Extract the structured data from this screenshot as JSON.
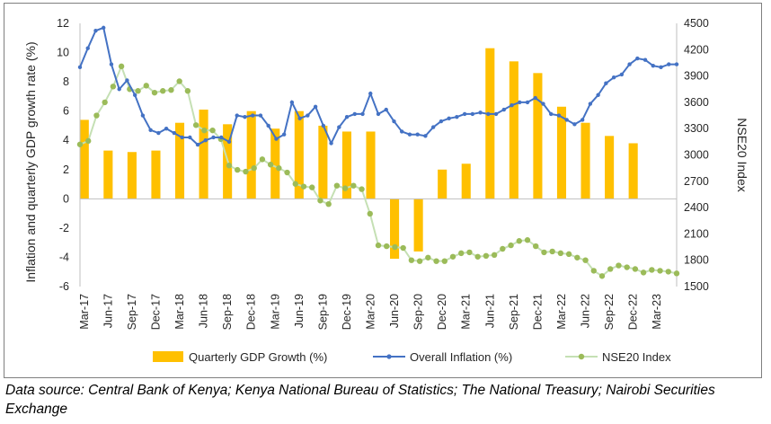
{
  "chart_data": {
    "type": "combo",
    "title": "",
    "y_left_label": "Inflation and quarterly GDP growth rate (%)",
    "y_right_label": "NSE20 Index",
    "ylim_left": [
      -6,
      12
    ],
    "ylim_right": [
      1500,
      4500
    ],
    "left_ticks": [
      -6,
      -4,
      -2,
      0,
      2,
      4,
      6,
      8,
      10,
      12
    ],
    "right_ticks": [
      1500,
      1800,
      2100,
      2400,
      2700,
      3000,
      3300,
      3600,
      3900,
      4200,
      4500
    ],
    "x_tick_labels": [
      "Mar-17",
      "Jun-17",
      "Sep-17",
      "Dec-17",
      "Mar-18",
      "Jun-18",
      "Sep-18",
      "Dec-18",
      "Mar-19",
      "Jun-19",
      "Sep-19",
      "Dec-19",
      "Mar-20",
      "Jun-20",
      "Sep-20",
      "Dec-20",
      "Mar-21",
      "Jun-21",
      "Sep-21",
      "Dec-21",
      "Mar-22",
      "Jun-22",
      "Sep-22",
      "Dec-22",
      "Mar-23"
    ],
    "legend_position": "bottom",
    "grid": false,
    "series": [
      {
        "name": "Quarterly GDP Growth (%)",
        "kind": "bar",
        "axis": "left",
        "color": "#FFC000",
        "values": [
          5.4,
          3.3,
          3.2,
          3.3,
          5.2,
          6.1,
          5.1,
          6.0,
          4.8,
          6.0,
          5.0,
          4.6,
          4.6,
          -4.1,
          -3.6,
          2.0,
          2.4,
          10.3,
          9.4,
          8.6,
          6.3,
          5.2,
          4.3,
          3.8
        ]
      },
      {
        "name": "Overall Inflation (%)",
        "kind": "line",
        "axis": "left",
        "color": "#4472C4",
        "values": [
          9.0,
          10.3,
          11.5,
          11.7,
          9.2,
          7.5,
          8.1,
          7.1,
          5.7,
          4.7,
          4.5,
          4.8,
          4.5,
          4.2,
          4.2,
          3.7,
          4.0,
          4.2,
          4.2,
          3.9,
          5.7,
          5.6,
          5.7,
          5.7,
          5.0,
          4.1,
          4.4,
          6.6,
          5.5,
          5.7,
          6.3,
          5.0,
          3.8,
          4.9,
          5.6,
          5.8,
          5.8,
          7.2,
          5.8,
          6.1,
          5.3,
          4.6,
          4.4,
          4.4,
          4.3,
          4.9,
          5.3,
          5.5,
          5.6,
          5.8,
          5.8,
          5.9,
          5.8,
          5.8,
          6.1,
          6.4,
          6.6,
          6.6,
          6.9,
          6.5,
          5.8,
          5.7,
          5.4,
          5.1,
          5.4,
          6.5,
          7.1,
          7.9,
          8.3,
          8.5,
          9.2,
          9.6,
          9.5,
          9.1,
          9.0,
          9.2,
          9.2
        ]
      },
      {
        "name": "NSE20 Index",
        "kind": "line",
        "axis": "right",
        "color": "#C5E0B4",
        "marker_color": "#9BBB59",
        "values": [
          3120,
          3160,
          3450,
          3600,
          3780,
          4010,
          3750,
          3730,
          3790,
          3710,
          3730,
          3740,
          3840,
          3730,
          3340,
          3280,
          3280,
          3180,
          2880,
          2830,
          2810,
          2850,
          2950,
          2890,
          2850,
          2800,
          2670,
          2640,
          2630,
          2480,
          2440,
          2650,
          2620,
          2650,
          2610,
          2330,
          1970,
          1960,
          1950,
          1940,
          1800,
          1790,
          1830,
          1790,
          1790,
          1840,
          1880,
          1890,
          1840,
          1850,
          1860,
          1930,
          1970,
          2020,
          2030,
          1960,
          1890,
          1900,
          1880,
          1870,
          1830,
          1800,
          1680,
          1620,
          1700,
          1740,
          1720,
          1700,
          1660,
          1690,
          1680,
          1670,
          1650
        ]
      }
    ]
  },
  "source_note": "Data source: Central Bank of Kenya; Kenya National Bureau of Statistics; The National Treasury; Nairobi Securities Exchange"
}
